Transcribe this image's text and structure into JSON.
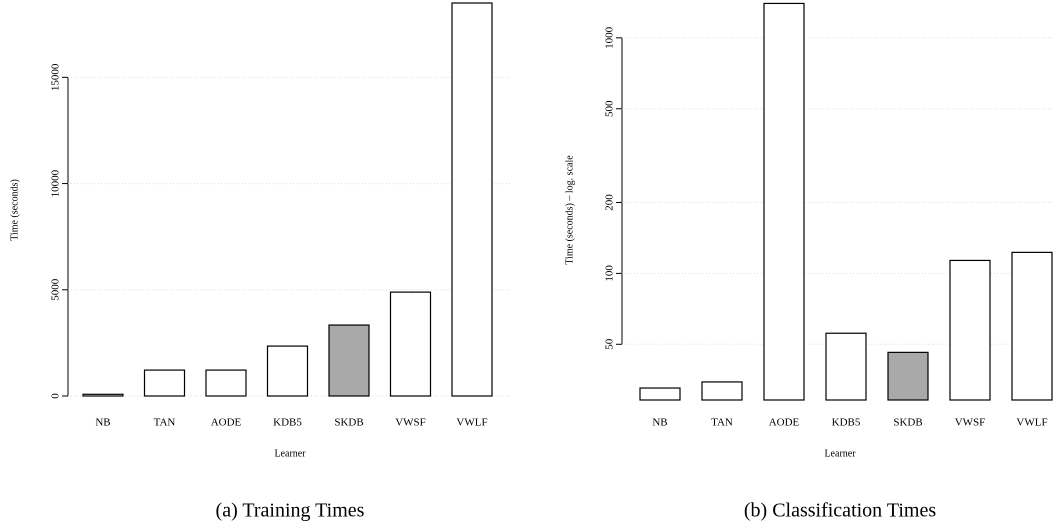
{
  "chart_data": [
    {
      "type": "bar",
      "caption": "(a) Training Times",
      "xlabel": "Learner",
      "ylabel": "Time (seconds)",
      "categories": [
        "NB",
        "TAN",
        "AODE",
        "KDB5",
        "SKDB",
        "VWSF",
        "VWLF"
      ],
      "values": [
        80,
        1220,
        1220,
        2350,
        3340,
        4890,
        18500
      ],
      "colors": [
        "#ffffff",
        "#ffffff",
        "#ffffff",
        "#ffffff",
        "#a9a9a9",
        "#ffffff",
        "#ffffff"
      ],
      "ylim": [
        0,
        18500
      ],
      "yticks": [
        0,
        5000,
        10000,
        15000
      ],
      "log_scale": false,
      "grid": true
    },
    {
      "type": "bar",
      "caption": "(b) Classification Times",
      "xlabel": "Learner",
      "ylabel": "Time (seconds) – log. scale",
      "categories": [
        "NB",
        "TAN",
        "AODE",
        "KDB5",
        "SKDB",
        "VWSF",
        "VWLF"
      ],
      "values": [
        32.6,
        34.6,
        1400,
        55.7,
        46.2,
        113.5,
        122.8
      ],
      "colors": [
        "#ffffff",
        "#ffffff",
        "#ffffff",
        "#ffffff",
        "#a9a9a9",
        "#ffffff",
        "#ffffff"
      ],
      "ylim": [
        29,
        1406
      ],
      "yticks": [
        50,
        100,
        200,
        500,
        1000
      ],
      "log_scale": true,
      "grid": true
    }
  ]
}
